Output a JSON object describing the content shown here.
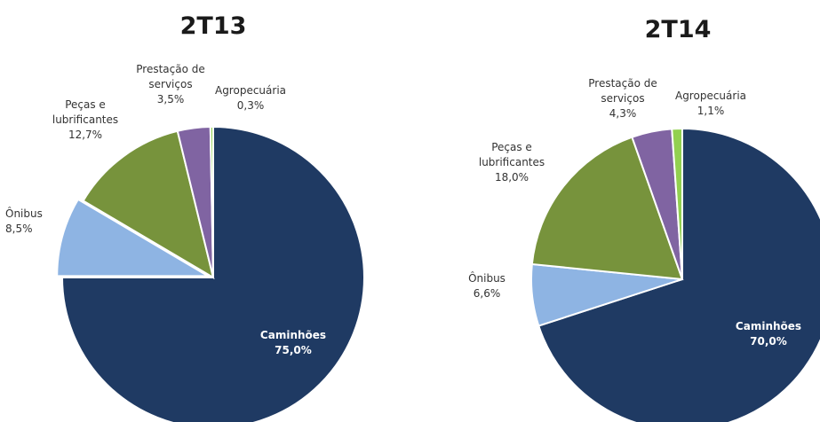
{
  "chart_data": [
    {
      "type": "pie",
      "title": "2T13",
      "slices": [
        {
          "label": "Caminhões",
          "value": 75.0,
          "display": "75,0%",
          "color": "#1f3a63"
        },
        {
          "label": "Ônibus",
          "value": 8.5,
          "display": "8,5%",
          "color": "#8eb4e3"
        },
        {
          "label": "Peças e lubrificantes",
          "value": 12.7,
          "display": "12,7%",
          "color": "#77933c"
        },
        {
          "label": "Prestação de serviços",
          "value": 3.5,
          "display": "3,5%",
          "color": "#8064a2"
        },
        {
          "label": "Agropecuária",
          "value": 0.3,
          "display": "0,3%",
          "color": "#92d050"
        }
      ]
    },
    {
      "type": "pie",
      "title": "2T14",
      "slices": [
        {
          "label": "Caminhões",
          "value": 70.0,
          "display": "70,0%",
          "color": "#1f3a63"
        },
        {
          "label": "Ônibus",
          "value": 6.6,
          "display": "6,6%",
          "color": "#8eb4e3"
        },
        {
          "label": "Peças e lubrificantes",
          "value": 18.0,
          "display": "18,0%",
          "color": "#77933c"
        },
        {
          "label": "Prestação de serviços",
          "value": 4.3,
          "display": "4,3%",
          "color": "#8064a2"
        },
        {
          "label": "Agropecuária",
          "value": 1.1,
          "display": "1,1%",
          "color": "#92d050"
        }
      ]
    }
  ]
}
